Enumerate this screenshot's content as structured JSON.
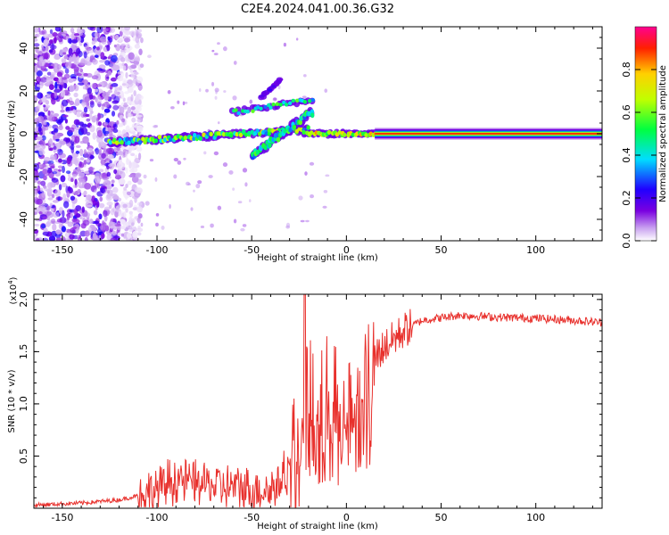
{
  "title": "C2E4.2024.041.00.36.G32",
  "chart_data": [
    {
      "type": "heatmap",
      "xlabel": "Height of straight line (km)",
      "ylabel": "Frequency (Hz)",
      "xlim": [
        -165,
        135
      ],
      "ylim": [
        -50,
        50
      ],
      "xticks": [
        -150,
        -100,
        -50,
        0,
        50,
        100
      ],
      "yticks": [
        -40,
        -20,
        0,
        20,
        40
      ],
      "colorbar": {
        "label": "Normalized spectral amplitude",
        "range": [
          0,
          1
        ],
        "ticks": [
          0.0,
          0.2,
          0.4,
          0.6,
          0.8
        ],
        "colormap": "rainbow (purple→blue→cyan→green→yellow→red)"
      },
      "features": {
        "noise_region_x": [
          -165,
          -120
        ],
        "carrier_line": {
          "x": [
            15,
            135
          ],
          "y": 0
        },
        "trace_main": {
          "x": [
            -125,
            -20
          ],
          "y_start": -4,
          "y_end": 2
        },
        "trace_upper_branch": {
          "x": [
            -60,
            -18
          ],
          "y_start": 10,
          "y_end": 16
        },
        "trace_lower_branch": {
          "x": [
            -50,
            -18
          ],
          "y_start": -10,
          "y_end": 10
        },
        "trace_high_branch": {
          "x": [
            -45,
            -35
          ],
          "y_start": 17,
          "y_end": 25
        },
        "trace_join": {
          "x": [
            -22,
            18
          ],
          "y": 0
        }
      }
    },
    {
      "type": "line",
      "xlabel": "Height of straight line (km)",
      "ylabel": "SNR (10 * v/v)",
      "y_scale_note": "(x10",
      "y_scale_exp": "4",
      "y_scale_close": ")",
      "xlim": [
        -165,
        135
      ],
      "ylim": [
        0,
        2.05
      ],
      "xticks": [
        -150,
        -100,
        -50,
        0,
        50,
        100
      ],
      "yticks": [
        "0.5",
        "1.0",
        "1.5",
        "2.0"
      ],
      "series": [
        {
          "color": "#e8302c",
          "profile_x": [
            -165,
            -140,
            -120,
            -110,
            -100,
            -90,
            -80,
            -70,
            -60,
            -50,
            -40,
            -35,
            -30,
            -27,
            -25,
            -22,
            -20,
            -15,
            -10,
            -5,
            0,
            5,
            10,
            15,
            20,
            25,
            30,
            40,
            60,
            80,
            100,
            120,
            135
          ],
          "profile_y": [
            0.03,
            0.05,
            0.08,
            0.12,
            0.18,
            0.28,
            0.25,
            0.22,
            0.2,
            0.18,
            0.18,
            0.25,
            0.4,
            0.8,
            0.9,
            1.0,
            1.05,
            1.1,
            1.15,
            1.0,
            1.0,
            1.1,
            1.15,
            1.45,
            1.55,
            1.62,
            1.7,
            1.8,
            1.85,
            1.83,
            1.82,
            1.8,
            1.78
          ]
        }
      ]
    }
  ]
}
